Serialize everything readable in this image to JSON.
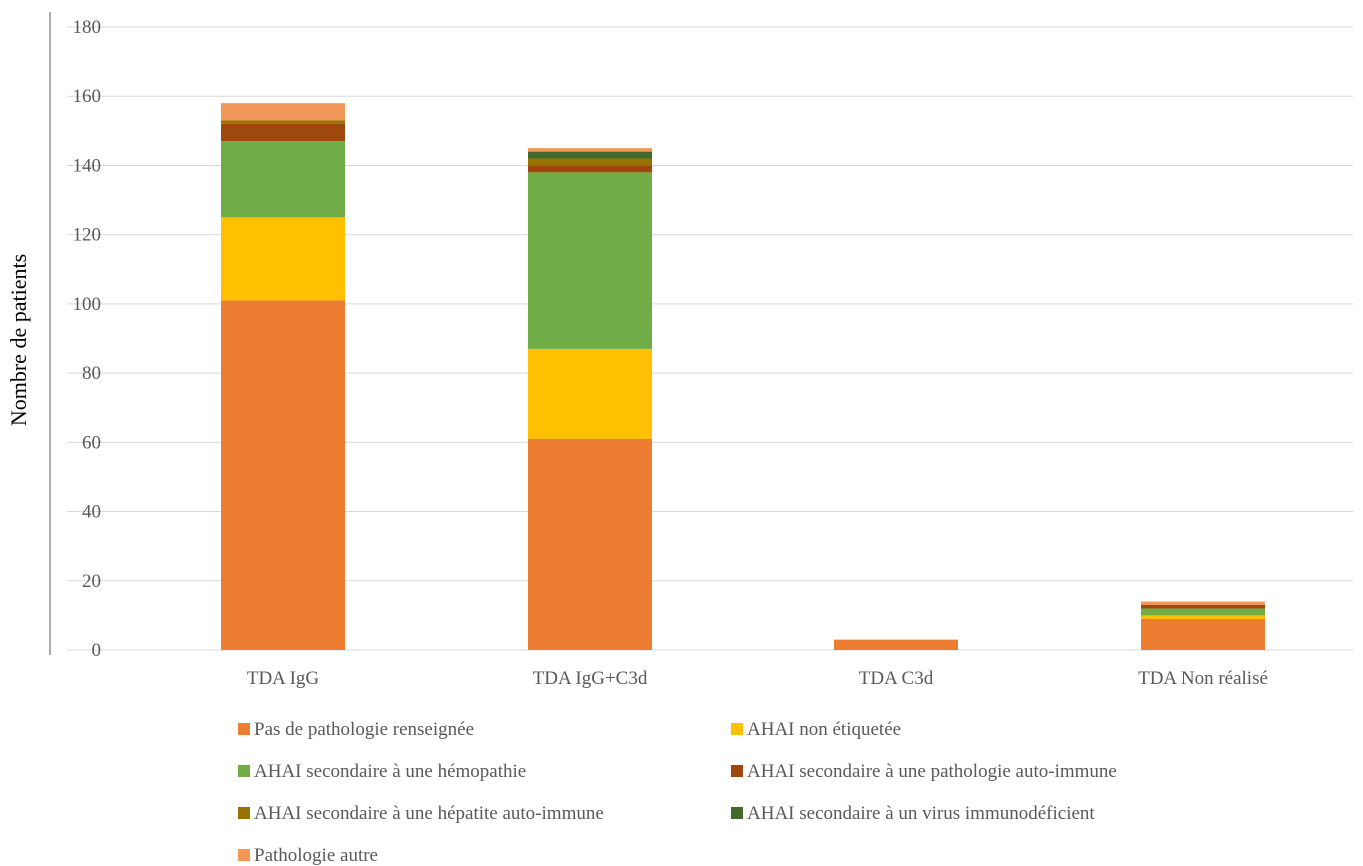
{
  "chart_data": {
    "type": "bar",
    "stacked": true,
    "title": "",
    "xlabel": "",
    "ylabel": "Nombre de patients",
    "ylim": [
      0,
      180
    ],
    "yticks": [
      0,
      20,
      40,
      60,
      80,
      100,
      120,
      140,
      160,
      180
    ],
    "grid": true,
    "legend_position": "bottom",
    "categories": [
      "TDA IgG",
      "TDA IgG+C3d",
      "TDA C3d",
      "TDA Non réalisé"
    ],
    "series": [
      {
        "name": "Pas de pathologie renseignée",
        "color": "#ED7D31",
        "values": [
          101,
          61,
          3,
          9
        ]
      },
      {
        "name": "AHAI non étiquetée",
        "color": "#FFC000",
        "values": [
          24,
          26,
          0,
          1
        ]
      },
      {
        "name": "AHAI secondaire à une hémopathie",
        "color": "#70AD47",
        "values": [
          22,
          51,
          0,
          2
        ]
      },
      {
        "name": "AHAI secondaire à une pathologie auto-immune",
        "color": "#9E480E",
        "values": [
          5,
          2,
          0,
          1
        ]
      },
      {
        "name": "AHAI secondaire à une hépatite auto-immune",
        "color": "#997300",
        "values": [
          1,
          2,
          0,
          0
        ]
      },
      {
        "name": "AHAI secondaire à un virus immunodéficient",
        "color": "#43682B",
        "values": [
          0,
          2,
          0,
          0
        ]
      },
      {
        "name": "Pathologie autre",
        "color": "#F1975A",
        "values": [
          5,
          1,
          0,
          1
        ]
      }
    ]
  }
}
